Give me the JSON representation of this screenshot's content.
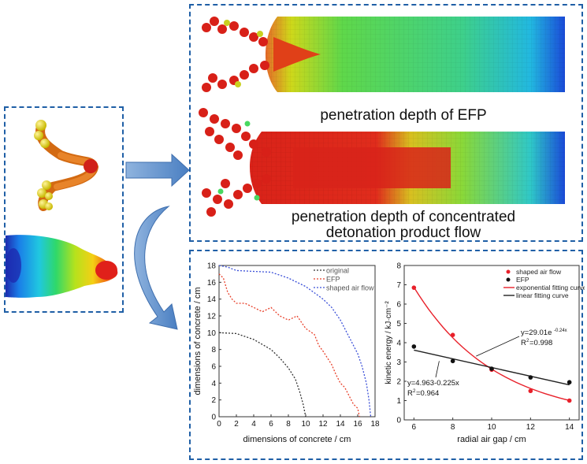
{
  "top_panel": {
    "caption_efp": "penetration depth of EFP",
    "caption_flow_line1": "penetration depth of concentrated",
    "caption_flow_line2": "detonation product flow"
  },
  "chart_data": [
    {
      "type": "line",
      "xlabel": "dimensions of concrete / cm",
      "ylabel": "dimensions of concrete / cm",
      "xlim": [
        0,
        18
      ],
      "ylim": [
        0,
        18
      ],
      "xticks": [
        "0",
        "2",
        "4",
        "6",
        "8",
        "10",
        "12",
        "14",
        "16",
        "18"
      ],
      "yticks": [
        "0",
        "2",
        "4",
        "6",
        "8",
        "10",
        "12",
        "14",
        "16",
        "18"
      ],
      "legend_position": "top-right",
      "series": [
        {
          "name": "original",
          "color": "#333333",
          "x": [
            0,
            2,
            4,
            6,
            7,
            8,
            8.8,
            9.3,
            9.7,
            10
          ],
          "y": [
            10,
            9.9,
            9.2,
            8.0,
            7.0,
            5.8,
            4.5,
            3.0,
            1.5,
            0
          ]
        },
        {
          "name": "EFP",
          "color": "#e8402a",
          "x": [
            0,
            0.5,
            1,
            1.5,
            2,
            3,
            4,
            5,
            6,
            7,
            8,
            9,
            10,
            11,
            11.5,
            12,
            12.5,
            13,
            13.5,
            14,
            14.5,
            15,
            15.5,
            16,
            16.2
          ],
          "y": [
            17,
            16.5,
            14.8,
            14,
            13.5,
            13.5,
            13,
            12.5,
            13,
            12,
            11.5,
            12,
            10.5,
            9.8,
            8.5,
            7.8,
            7,
            6.2,
            5,
            4,
            3.5,
            2.5,
            1.5,
            1,
            0
          ]
        },
        {
          "name": "shaped air flow",
          "color": "#3a4fd8",
          "x": [
            0,
            1,
            2,
            4,
            6,
            8,
            10,
            12,
            13,
            14,
            15,
            16,
            16.5,
            17,
            17.3,
            17.5
          ],
          "y": [
            18,
            17.8,
            17.4,
            17.3,
            17.2,
            16.5,
            15.5,
            14,
            13,
            11.5,
            9.5,
            7.5,
            6,
            4,
            2,
            0
          ]
        }
      ]
    },
    {
      "type": "scatter",
      "xlabel": "radial air gap / cm",
      "ylabel": "kinetic energy / kJ·cm⁻²",
      "xlim": [
        5.5,
        14.5
      ],
      "ylim": [
        0,
        8
      ],
      "xticks": [
        "6",
        "8",
        "10",
        "12",
        "14"
      ],
      "yticks": [
        "0",
        "1",
        "2",
        "3",
        "4",
        "5",
        "6",
        "7",
        "8"
      ],
      "legend_position": "top-right",
      "series": [
        {
          "name": "shaped air flow",
          "color": "#e8202a",
          "x": [
            6,
            8,
            10,
            12,
            14
          ],
          "y": [
            6.85,
            4.4,
            2.6,
            1.5,
            1.0
          ]
        },
        {
          "name": "EFP",
          "color": "#111111",
          "x": [
            6,
            8,
            10,
            12,
            14
          ],
          "y": [
            3.8,
            3.05,
            2.65,
            2.2,
            1.95
          ]
        }
      ],
      "fits": [
        {
          "name": "exponential fitting curve",
          "color": "#e8202a",
          "equation": "y=29.01e",
          "exponent": "-0.24x",
          "r2_label": "R",
          "r2_value": "=0.998"
        },
        {
          "name": "linear fitting curve",
          "color": "#222222",
          "equation": "y=4.963-0.225x",
          "r2_label": "R",
          "r2_value": "=0.964"
        }
      ]
    }
  ]
}
